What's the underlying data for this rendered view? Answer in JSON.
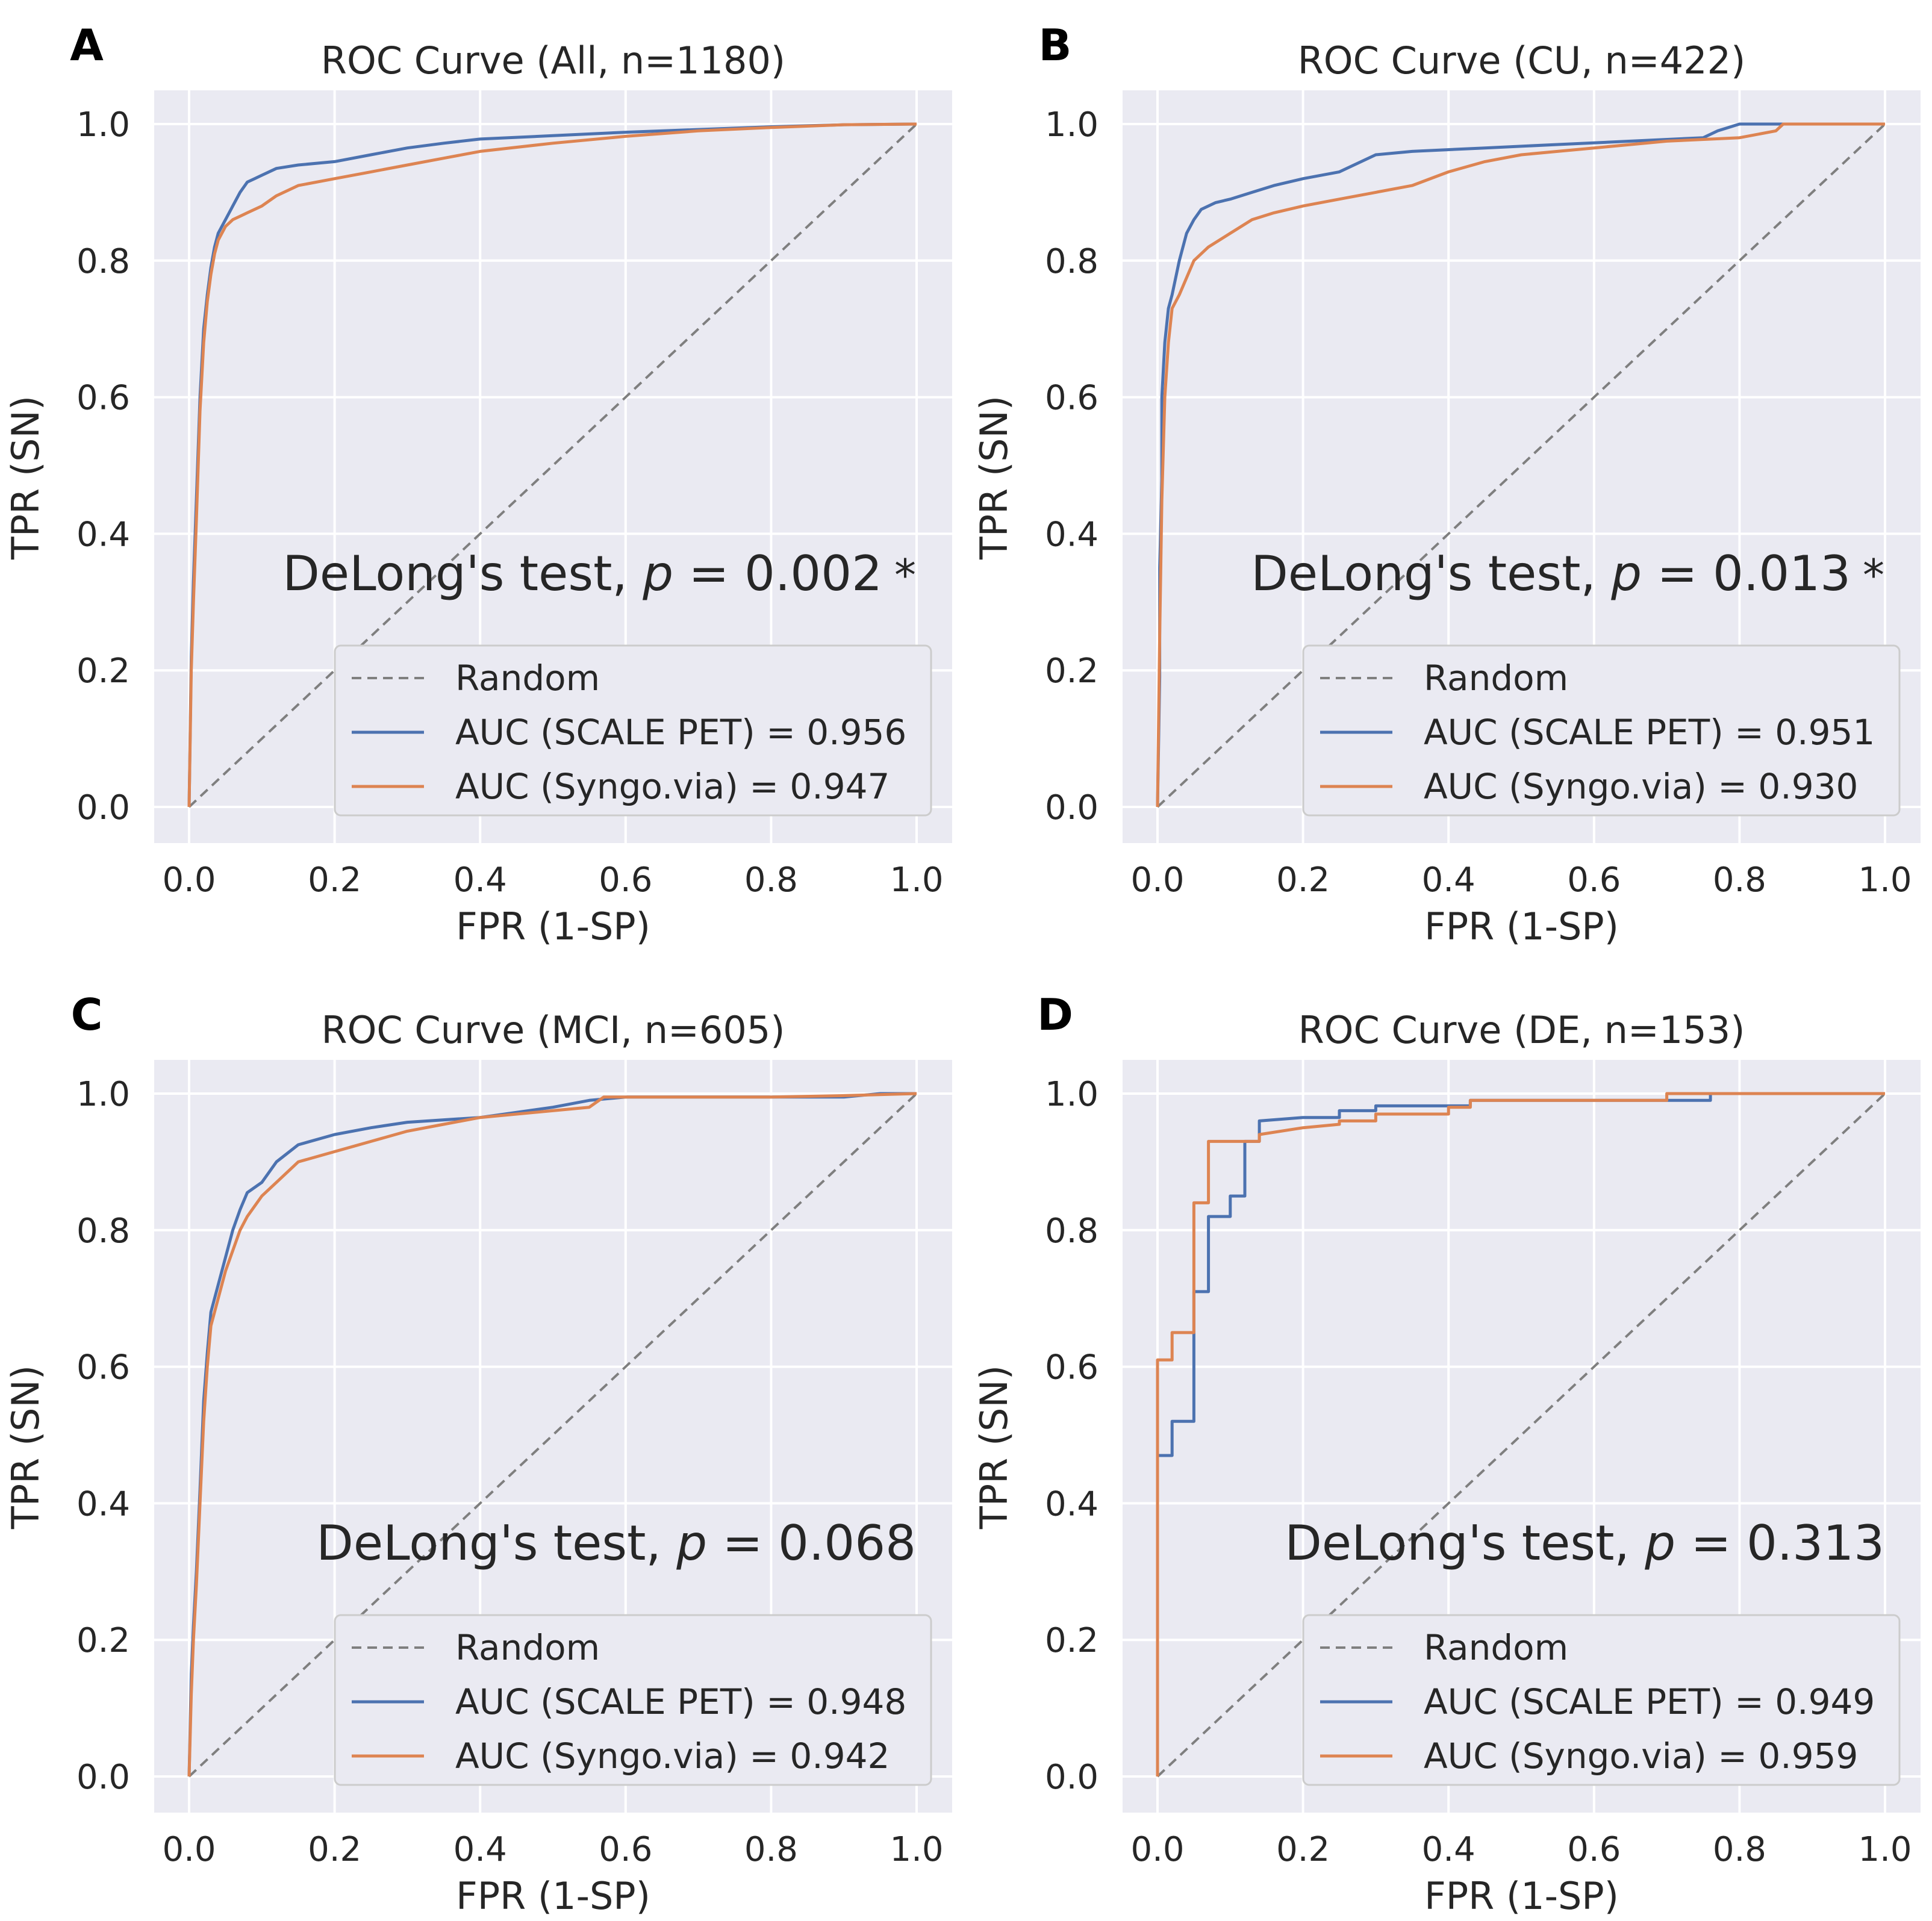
{
  "figure": {
    "colors": {
      "background": "#ffffff",
      "plot_bg": "#eaeaf2",
      "grid": "#ffffff",
      "scale_pet": "#4c72b0",
      "syngo_via": "#dd8452",
      "random": "#7f7f7f",
      "text": "#262626",
      "legend_bg": "#eaeaf2",
      "legend_border": "#cccccc"
    }
  },
  "chart_data": [
    {
      "panel_letter": "A",
      "type": "line",
      "title": "ROC Curve (All, n=1180)",
      "xlabel": "FPR (1-SP)",
      "ylabel": "TPR (SN)",
      "xlim": [
        0,
        1
      ],
      "ylim": [
        0,
        1
      ],
      "xticks": [
        "0.0",
        "0.2",
        "0.4",
        "0.6",
        "0.8",
        "1.0"
      ],
      "yticks": [
        "0.0",
        "0.2",
        "0.4",
        "0.6",
        "0.8",
        "1.0"
      ],
      "grid": true,
      "legend_position": "lower-right",
      "annotation": {
        "prefix": "DeLong's test, ",
        "p_symbol": "p",
        "equals": " = 0.002",
        "star": "*"
      },
      "series": [
        {
          "name": "Random",
          "legend_label": "Random",
          "style": "dashed",
          "x": [
            0,
            1
          ],
          "y": [
            0,
            1
          ]
        },
        {
          "name": "SCALE PET",
          "legend_label": "AUC (SCALE PET) = 0.956",
          "style": "solid",
          "x": [
            0,
            0.003,
            0.006,
            0.01,
            0.015,
            0.02,
            0.025,
            0.03,
            0.035,
            0.04,
            0.05,
            0.06,
            0.07,
            0.08,
            0.09,
            0.1,
            0.12,
            0.15,
            0.2,
            0.25,
            0.3,
            0.35,
            0.4,
            0.5,
            0.6,
            0.7,
            0.8,
            0.9,
            1.0
          ],
          "y": [
            0,
            0.22,
            0.33,
            0.45,
            0.6,
            0.7,
            0.75,
            0.79,
            0.82,
            0.84,
            0.86,
            0.88,
            0.9,
            0.915,
            0.92,
            0.925,
            0.935,
            0.94,
            0.945,
            0.955,
            0.965,
            0.972,
            0.978,
            0.983,
            0.988,
            0.992,
            0.996,
            0.999,
            1.0
          ]
        },
        {
          "name": "Syngo.via",
          "legend_label": "AUC (Syngo.via) = 0.947",
          "style": "solid",
          "x": [
            0,
            0.003,
            0.006,
            0.01,
            0.015,
            0.02,
            0.025,
            0.03,
            0.035,
            0.04,
            0.05,
            0.06,
            0.07,
            0.08,
            0.1,
            0.12,
            0.15,
            0.2,
            0.25,
            0.3,
            0.35,
            0.4,
            0.5,
            0.6,
            0.7,
            0.8,
            0.9,
            1.0
          ],
          "y": [
            0,
            0.2,
            0.3,
            0.42,
            0.58,
            0.68,
            0.74,
            0.78,
            0.81,
            0.83,
            0.85,
            0.86,
            0.865,
            0.87,
            0.88,
            0.895,
            0.91,
            0.92,
            0.93,
            0.94,
            0.95,
            0.96,
            0.972,
            0.982,
            0.99,
            0.995,
            0.999,
            1.0
          ]
        }
      ]
    },
    {
      "panel_letter": "B",
      "type": "line",
      "title": "ROC Curve (CU, n=422)",
      "xlabel": "FPR (1-SP)",
      "ylabel": "TPR (SN)",
      "xlim": [
        0,
        1
      ],
      "ylim": [
        0,
        1
      ],
      "xticks": [
        "0.0",
        "0.2",
        "0.4",
        "0.6",
        "0.8",
        "1.0"
      ],
      "yticks": [
        "0.0",
        "0.2",
        "0.4",
        "0.6",
        "0.8",
        "1.0"
      ],
      "grid": true,
      "legend_position": "lower-right",
      "annotation": {
        "prefix": "DeLong's test, ",
        "p_symbol": "p",
        "equals": " = 0.013",
        "star": "*"
      },
      "series": [
        {
          "name": "Random",
          "legend_label": "Random",
          "style": "dashed",
          "x": [
            0,
            1
          ],
          "y": [
            0,
            1
          ]
        },
        {
          "name": "SCALE PET",
          "legend_label": "AUC (SCALE PET) = 0.951",
          "style": "solid",
          "x": [
            0,
            0.003,
            0.003,
            0.006,
            0.006,
            0.01,
            0.015,
            0.02,
            0.03,
            0.04,
            0.05,
            0.06,
            0.08,
            0.1,
            0.13,
            0.16,
            0.2,
            0.25,
            0.3,
            0.35,
            0.45,
            0.55,
            0.65,
            0.75,
            0.77,
            0.8,
            0.85,
            1.0
          ],
          "y": [
            0,
            0.19,
            0.35,
            0.48,
            0.6,
            0.68,
            0.73,
            0.75,
            0.8,
            0.84,
            0.86,
            0.875,
            0.885,
            0.89,
            0.9,
            0.91,
            0.92,
            0.93,
            0.955,
            0.96,
            0.965,
            0.97,
            0.975,
            0.98,
            0.99,
            1.0,
            1.0,
            1.0
          ]
        },
        {
          "name": "Syngo.via",
          "legend_label": "AUC (Syngo.via) = 0.930",
          "style": "solid",
          "x": [
            0,
            0.003,
            0.006,
            0.01,
            0.015,
            0.02,
            0.03,
            0.05,
            0.07,
            0.1,
            0.13,
            0.16,
            0.2,
            0.25,
            0.3,
            0.35,
            0.4,
            0.45,
            0.5,
            0.6,
            0.7,
            0.8,
            0.85,
            0.86,
            0.9,
            1.0
          ],
          "y": [
            0,
            0.25,
            0.45,
            0.6,
            0.68,
            0.73,
            0.75,
            0.8,
            0.82,
            0.84,
            0.86,
            0.87,
            0.88,
            0.89,
            0.9,
            0.91,
            0.93,
            0.945,
            0.955,
            0.965,
            0.975,
            0.98,
            0.99,
            1.0,
            1.0,
            1.0
          ]
        }
      ]
    },
    {
      "panel_letter": "C",
      "type": "line",
      "title": "ROC Curve (MCI, n=605)",
      "xlabel": "FPR (1-SP)",
      "ylabel": "TPR (SN)",
      "xlim": [
        0,
        1
      ],
      "ylim": [
        0,
        1
      ],
      "xticks": [
        "0.0",
        "0.2",
        "0.4",
        "0.6",
        "0.8",
        "1.0"
      ],
      "yticks": [
        "0.0",
        "0.2",
        "0.4",
        "0.6",
        "0.8",
        "1.0"
      ],
      "grid": true,
      "legend_position": "lower-right",
      "annotation": {
        "prefix": "DeLong's test, ",
        "p_symbol": "p",
        "equals": " = 0.068",
        "star": ""
      },
      "series": [
        {
          "name": "Random",
          "legend_label": "Random",
          "style": "dashed",
          "x": [
            0,
            1
          ],
          "y": [
            0,
            1
          ]
        },
        {
          "name": "SCALE PET",
          "legend_label": "AUC (SCALE PET) = 0.948",
          "style": "solid",
          "x": [
            0,
            0.003,
            0.006,
            0.01,
            0.015,
            0.02,
            0.025,
            0.03,
            0.04,
            0.05,
            0.06,
            0.07,
            0.08,
            0.1,
            0.12,
            0.15,
            0.2,
            0.25,
            0.3,
            0.4,
            0.5,
            0.55,
            0.6,
            0.7,
            0.8,
            0.9,
            0.95,
            1.0
          ],
          "y": [
            0,
            0.15,
            0.22,
            0.3,
            0.42,
            0.55,
            0.62,
            0.68,
            0.72,
            0.76,
            0.8,
            0.83,
            0.855,
            0.87,
            0.9,
            0.925,
            0.94,
            0.95,
            0.958,
            0.965,
            0.98,
            0.99,
            0.995,
            0.995,
            0.995,
            0.995,
            1.0,
            1.0
          ]
        },
        {
          "name": "Syngo.via",
          "legend_label": "AUC (Syngo.via) = 0.942",
          "style": "solid",
          "x": [
            0,
            0.003,
            0.006,
            0.01,
            0.015,
            0.02,
            0.025,
            0.03,
            0.04,
            0.05,
            0.06,
            0.07,
            0.08,
            0.1,
            0.12,
            0.15,
            0.2,
            0.25,
            0.3,
            0.35,
            0.4,
            0.5,
            0.55,
            0.57,
            0.6,
            0.7,
            0.8,
            0.9,
            1.0
          ],
          "y": [
            0,
            0.12,
            0.2,
            0.28,
            0.4,
            0.52,
            0.6,
            0.66,
            0.7,
            0.74,
            0.77,
            0.8,
            0.82,
            0.85,
            0.87,
            0.9,
            0.915,
            0.93,
            0.945,
            0.955,
            0.965,
            0.975,
            0.98,
            0.995,
            0.995,
            0.995,
            0.995,
            0.997,
            1.0
          ]
        }
      ]
    },
    {
      "panel_letter": "D",
      "type": "line",
      "title": "ROC Curve (DE, n=153)",
      "xlabel": "FPR (1-SP)",
      "ylabel": "TPR (SN)",
      "xlim": [
        0,
        1
      ],
      "ylim": [
        0,
        1
      ],
      "xticks": [
        "0.0",
        "0.2",
        "0.4",
        "0.6",
        "0.8",
        "1.0"
      ],
      "yticks": [
        "0.0",
        "0.2",
        "0.4",
        "0.6",
        "0.8",
        "1.0"
      ],
      "grid": true,
      "legend_position": "lower-right",
      "annotation": {
        "prefix": "DeLong's test, ",
        "p_symbol": "p",
        "equals": " = 0.313",
        "star": ""
      },
      "series": [
        {
          "name": "Random",
          "legend_label": "Random",
          "style": "dashed",
          "x": [
            0,
            1
          ],
          "y": [
            0,
            1
          ]
        },
        {
          "name": "SCALE PET",
          "legend_label": "AUC (SCALE PET) = 0.949",
          "style": "solid",
          "x": [
            0,
            0,
            0.02,
            0.02,
            0.05,
            0.05,
            0.07,
            0.07,
            0.1,
            0.1,
            0.12,
            0.12,
            0.14,
            0.14,
            0.2,
            0.25,
            0.25,
            0.3,
            0.3,
            0.43,
            0.43,
            0.6,
            0.76,
            0.76,
            1.0
          ],
          "y": [
            0,
            0.47,
            0.47,
            0.52,
            0.52,
            0.71,
            0.71,
            0.82,
            0.82,
            0.85,
            0.85,
            0.93,
            0.93,
            0.96,
            0.965,
            0.965,
            0.975,
            0.975,
            0.982,
            0.982,
            0.99,
            0.99,
            0.99,
            1.0,
            1.0
          ]
        },
        {
          "name": "Syngo.via",
          "legend_label": "AUC (Syngo.via) = 0.959",
          "style": "solid",
          "x": [
            0,
            0,
            0.02,
            0.02,
            0.05,
            0.05,
            0.07,
            0.07,
            0.1,
            0.12,
            0.14,
            0.14,
            0.2,
            0.25,
            0.25,
            0.3,
            0.3,
            0.4,
            0.4,
            0.43,
            0.43,
            0.7,
            0.7,
            1.0
          ],
          "y": [
            0,
            0.61,
            0.61,
            0.65,
            0.65,
            0.84,
            0.84,
            0.93,
            0.93,
            0.93,
            0.93,
            0.94,
            0.95,
            0.955,
            0.96,
            0.96,
            0.97,
            0.97,
            0.98,
            0.98,
            0.99,
            0.99,
            1.0,
            1.0
          ]
        }
      ]
    }
  ]
}
